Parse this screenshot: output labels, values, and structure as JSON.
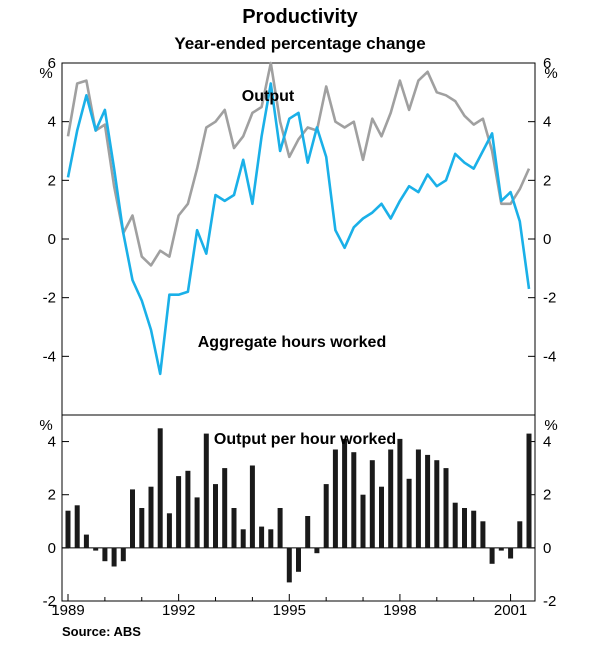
{
  "title": "Productivity",
  "subtitle": "Year-ended percentage change",
  "source": "Source: ABS",
  "colors": {
    "output": "#a0a0a0",
    "hours": "#1ab0e8",
    "bars": "#1a1a1a",
    "frame": "#000000"
  },
  "chart_data": [
    {
      "type": "line",
      "unit_left": "%",
      "unit_right": "%",
      "ylim": [
        -6,
        6
      ],
      "yticks": [
        -4,
        -2,
        0,
        2,
        4,
        6
      ],
      "x_start": 1989.0,
      "x_step": 0.25,
      "annotations": [
        "Output",
        "Aggregate hours worked"
      ],
      "series": [
        {
          "name": "Output",
          "values": [
            3.5,
            5.3,
            5.4,
            3.7,
            3.9,
            1.8,
            0.2,
            0.8,
            -0.6,
            -0.9,
            -0.4,
            -0.6,
            0.8,
            1.2,
            2.4,
            3.8,
            4.0,
            4.4,
            3.1,
            3.5,
            4.3,
            4.5,
            6.0,
            4.0,
            2.8,
            3.4,
            3.8,
            3.7,
            5.2,
            4.0,
            3.8,
            4.0,
            2.7,
            4.1,
            3.5,
            4.3,
            5.4,
            4.4,
            5.4,
            5.7,
            5.0,
            4.9,
            4.7,
            4.2,
            3.9,
            4.1,
            3.0,
            1.2,
            1.2,
            1.7,
            2.4
          ]
        },
        {
          "name": "Aggregate hours worked",
          "values": [
            2.1,
            3.7,
            4.9,
            3.7,
            4.4,
            2.4,
            0.2,
            -1.4,
            -2.1,
            -3.1,
            -4.6,
            -1.9,
            -1.9,
            -1.8,
            0.3,
            -0.5,
            1.5,
            1.3,
            1.5,
            2.7,
            1.2,
            3.5,
            5.3,
            3.0,
            4.1,
            4.3,
            2.6,
            3.8,
            2.8,
            0.3,
            -0.3,
            0.4,
            0.7,
            0.9,
            1.2,
            0.7,
            1.3,
            1.8,
            1.6,
            2.2,
            1.8,
            2.0,
            2.9,
            2.6,
            2.4,
            3.0,
            3.6,
            1.3,
            1.6,
            0.6,
            -1.7
          ]
        }
      ]
    },
    {
      "type": "bar",
      "title": "Output per hour worked",
      "unit_left": "%",
      "unit_right": "%",
      "ylim": [
        -2,
        5
      ],
      "yticks": [
        -2,
        0,
        2,
        4
      ],
      "x_start": 1989.0,
      "x_step": 0.25,
      "xticks": [
        "1989",
        "1992",
        "1995",
        "1998",
        "2001"
      ],
      "values": [
        1.4,
        1.6,
        0.5,
        -0.1,
        -0.5,
        -0.7,
        -0.5,
        2.2,
        1.5,
        2.3,
        4.5,
        1.3,
        2.7,
        2.9,
        1.9,
        4.3,
        2.4,
        3.0,
        1.5,
        0.7,
        3.1,
        0.8,
        0.7,
        1.5,
        -1.3,
        -0.9,
        1.2,
        -0.2,
        2.4,
        3.7,
        4.1,
        3.6,
        2.0,
        3.3,
        2.3,
        3.7,
        4.1,
        2.6,
        3.7,
        3.5,
        3.3,
        3.0,
        1.7,
        1.5,
        1.4,
        1.0,
        -0.6,
        -0.1,
        -0.4,
        1.0,
        4.3
      ]
    }
  ]
}
